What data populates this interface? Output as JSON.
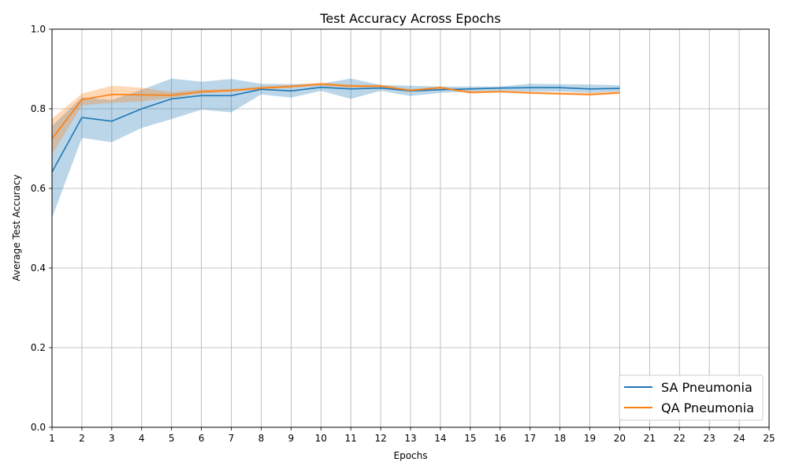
{
  "chart_data": {
    "type": "line",
    "title": "Test Accuracy Across Epochs",
    "xlabel": "Epochs",
    "ylabel": "Average Test Accuracy",
    "xlim": [
      1,
      25
    ],
    "ylim": [
      0.0,
      1.0
    ],
    "xticks": [
      "1",
      "2",
      "3",
      "4",
      "5",
      "6",
      "7",
      "8",
      "9",
      "10",
      "11",
      "12",
      "13",
      "14",
      "15",
      "16",
      "17",
      "18",
      "19",
      "20",
      "21",
      "22",
      "23",
      "24",
      "25"
    ],
    "yticks": [
      "0.0",
      "0.2",
      "0.4",
      "0.6",
      "0.8",
      "1.0"
    ],
    "grid": true,
    "legend_position": "lower-right",
    "series": [
      {
        "name": "SA Pneumonia",
        "color": "#1f77b4",
        "band_color": "#1f77b4",
        "x": [
          1,
          2,
          3,
          4,
          5,
          6,
          7,
          8,
          9,
          10,
          11,
          12,
          13,
          14,
          15,
          16,
          17,
          18,
          19,
          20
        ],
        "values": [
          0.641,
          0.778,
          0.769,
          0.8,
          0.825,
          0.833,
          0.833,
          0.849,
          0.845,
          0.854,
          0.85,
          0.852,
          0.845,
          0.848,
          0.85,
          0.852,
          0.853,
          0.853,
          0.85,
          0.851
        ],
        "lower": [
          0.526,
          0.727,
          0.716,
          0.752,
          0.774,
          0.798,
          0.791,
          0.836,
          0.828,
          0.845,
          0.825,
          0.845,
          0.832,
          0.84,
          0.843,
          0.845,
          0.843,
          0.843,
          0.84,
          0.843
        ],
        "upper": [
          0.757,
          0.829,
          0.822,
          0.848,
          0.876,
          0.868,
          0.875,
          0.863,
          0.862,
          0.863,
          0.876,
          0.86,
          0.858,
          0.856,
          0.856,
          0.856,
          0.863,
          0.862,
          0.861,
          0.859
        ]
      },
      {
        "name": "QA Pneumonia",
        "color": "#ff7f0e",
        "band_color": "#ff7f0e",
        "x": [
          1,
          2,
          3,
          4,
          5,
          6,
          7,
          8,
          9,
          10,
          11,
          12,
          13,
          14,
          15,
          16,
          17,
          18,
          19,
          20
        ],
        "values": [
          0.725,
          0.823,
          0.836,
          0.835,
          0.834,
          0.843,
          0.846,
          0.852,
          0.856,
          0.862,
          0.857,
          0.857,
          0.846,
          0.853,
          0.841,
          0.843,
          0.84,
          0.838,
          0.836,
          0.84
        ],
        "lower": [
          0.685,
          0.809,
          0.815,
          0.818,
          0.828,
          0.838,
          0.843,
          0.848,
          0.853,
          0.858,
          0.853,
          0.854,
          0.843,
          0.85,
          0.838,
          0.841,
          0.837,
          0.835,
          0.833,
          0.837
        ],
        "upper": [
          0.775,
          0.838,
          0.858,
          0.853,
          0.842,
          0.848,
          0.85,
          0.856,
          0.86,
          0.866,
          0.861,
          0.86,
          0.85,
          0.856,
          0.845,
          0.846,
          0.843,
          0.841,
          0.84,
          0.844
        ]
      }
    ]
  }
}
